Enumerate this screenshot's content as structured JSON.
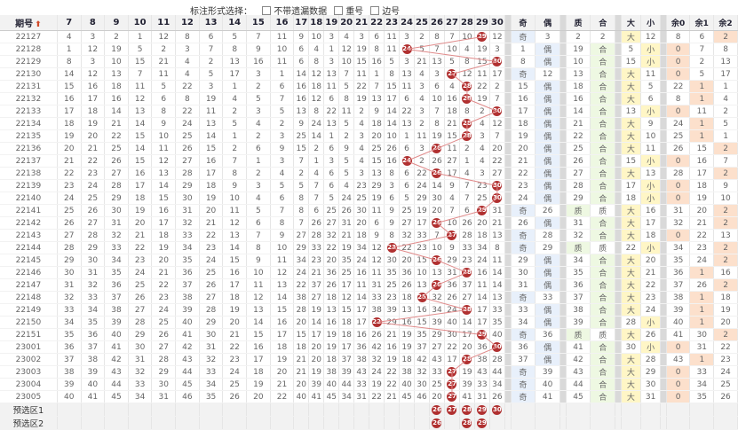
{
  "options": {
    "label": "标注形式选择：",
    "items": [
      {
        "label": "不带遗漏数据",
        "checked": false
      },
      {
        "label": "重号",
        "checked": false
      },
      {
        "label": "边号",
        "checked": false
      }
    ]
  },
  "headers": {
    "period": "期号",
    "sort_icon": "up-arrow-icon",
    "numbers": [
      "7",
      "8",
      "9",
      "10",
      "11",
      "12",
      "13",
      "14",
      "15",
      "16",
      "17",
      "18",
      "19",
      "20",
      "21",
      "22",
      "23",
      "24",
      "25",
      "26",
      "27",
      "28",
      "29",
      "30"
    ],
    "groups": [
      {
        "title": "奇偶",
        "cols": [
          "奇",
          "偶"
        ]
      },
      {
        "title": "质合",
        "cols": [
          "质",
          "合"
        ]
      },
      {
        "title": "尾大小",
        "cols": [
          "大",
          "小"
        ]
      },
      {
        "title": "除3余数",
        "cols": [
          "余0",
          "余1",
          "余2"
        ]
      }
    ]
  },
  "rows": [
    {
      "period": "22127",
      "ball": 29,
      "oe": "奇",
      "pc": "2",
      "bs": "大",
      "r": "r2",
      "miss": [
        "4",
        "3",
        "2",
        "1",
        "12",
        "8",
        "6",
        "5",
        "7",
        "11",
        "9",
        "10",
        "3"
      ]
    },
    {
      "period": "22128",
      "ball": 24,
      "oe": "偶",
      "pc": "合",
      "bs": "小",
      "r": "r0",
      "miss": [
        "1",
        "12",
        "19",
        "5",
        "2",
        "3",
        "7",
        "8",
        "9",
        "10",
        "11",
        "6",
        "4"
      ]
    },
    {
      "period": "22129",
      "ball": 30,
      "oe": "偶",
      "pc": "合",
      "bs": "小",
      "r": "r0",
      "miss": [
        "8",
        "3",
        "10",
        "15",
        "21",
        "4",
        "2",
        "13",
        "16",
        "11",
        "5",
        "5",
        "6"
      ]
    },
    {
      "period": "22130",
      "ball": 27,
      "oe": "奇",
      "pc": "合",
      "bs": "大",
      "r": "r0",
      "miss": [
        "14",
        "12",
        "13",
        "7",
        "11",
        "4",
        "5",
        "17",
        "3",
        "1",
        "6",
        "6",
        "8"
      ]
    },
    {
      "period": "22131",
      "ball": 28,
      "oe": "偶",
      "pc": "合",
      "bs": "大",
      "r": "r1",
      "miss": [
        "15",
        "16",
        "18",
        "11",
        "5",
        "22",
        "3",
        "1",
        "2",
        "6",
        "7",
        "8",
        "4"
      ]
    },
    {
      "period": "22132",
      "ball": 28,
      "oe": "偶",
      "pc": "合",
      "bs": "大",
      "r": "r1",
      "miss": [
        "16",
        "17",
        "16",
        "12",
        "6",
        "8",
        "19",
        "4",
        "5",
        "7",
        "10",
        "13",
        "3"
      ]
    },
    {
      "period": "22133",
      "ball": 30,
      "oe": "偶",
      "pc": "合",
      "bs": "小",
      "r": "r0",
      "miss": [
        "17",
        "18",
        "14",
        "13",
        "8",
        "22",
        "11",
        "2",
        "3",
        "5",
        "6",
        "7",
        "9"
      ]
    },
    {
      "period": "22134",
      "ball": 28,
      "oe": "偶",
      "pc": "合",
      "bs": "大",
      "r": "r1",
      "miss": [
        "18",
        "19",
        "21",
        "14",
        "9",
        "24",
        "13",
        "5",
        "4",
        "2",
        "3",
        "12",
        "8"
      ]
    },
    {
      "period": "22135",
      "ball": 28,
      "oe": "偶",
      "pc": "合",
      "bs": "大",
      "r": "r1",
      "miss": [
        "19",
        "20",
        "22",
        "15",
        "10",
        "25",
        "14",
        "1",
        "2",
        "3",
        "11",
        "8",
        "7"
      ]
    },
    {
      "period": "22136",
      "ball": 26,
      "oe": "偶",
      "pc": "合",
      "bs": "大",
      "r": "r2",
      "miss": [
        "20",
        "21",
        "25",
        "14",
        "11",
        "26",
        "15",
        "2",
        "6",
        "9",
        "4",
        "3",
        "1"
      ]
    },
    {
      "period": "22137",
      "ball": 24,
      "oe": "偶",
      "pc": "合",
      "bs": "小",
      "r": "r0",
      "miss": [
        "21",
        "22",
        "26",
        "15",
        "12",
        "27",
        "16",
        "7",
        "1",
        "3",
        "5",
        "4",
        "2"
      ]
    },
    {
      "period": "22138",
      "ball": 26,
      "oe": "偶",
      "pc": "合",
      "bs": "大",
      "r": "r2",
      "miss": [
        "22",
        "23",
        "27",
        "16",
        "13",
        "28",
        "17",
        "8",
        "2",
        "4",
        "6",
        "5",
        "3"
      ]
    },
    {
      "period": "22139",
      "ball": 30,
      "oe": "偶",
      "pc": "合",
      "bs": "小",
      "r": "r0",
      "miss": [
        "23",
        "24",
        "28",
        "17",
        "14",
        "29",
        "18",
        "9",
        "3",
        "5",
        "7",
        "6",
        "4"
      ]
    },
    {
      "period": "22140",
      "ball": 30,
      "oe": "偶",
      "pc": "合",
      "bs": "小",
      "r": "r0",
      "miss": [
        "24",
        "25",
        "29",
        "18",
        "15",
        "30",
        "19",
        "10",
        "4",
        "6",
        "8",
        "7",
        "5"
      ]
    },
    {
      "period": "22141",
      "ball": 29,
      "oe": "奇",
      "pc": "质",
      "bs": "大",
      "r": "r2",
      "miss": [
        "25",
        "26",
        "30",
        "19",
        "16",
        "31",
        "20",
        "11",
        "5",
        "7",
        "9",
        "8",
        "6"
      ]
    },
    {
      "period": "22142",
      "ball": 26,
      "oe": "偶",
      "pc": "合",
      "bs": "大",
      "r": "r2",
      "miss": [
        "26",
        "27",
        "31",
        "20",
        "17",
        "32",
        "21",
        "12",
        "6",
        "8",
        "10",
        "9",
        "7"
      ]
    },
    {
      "period": "22143",
      "ball": 27,
      "oe": "奇",
      "pc": "合",
      "bs": "大",
      "r": "r0",
      "miss": [
        "27",
        "28",
        "32",
        "21",
        "18",
        "33",
        "22",
        "13",
        "7",
        "9",
        "11",
        "10",
        "8"
      ]
    },
    {
      "period": "22144",
      "ball": 23,
      "oe": "奇",
      "pc": "质",
      "bs": "小",
      "r": "r2",
      "miss": [
        "28",
        "29",
        "33",
        "22",
        "19",
        "34",
        "23",
        "14",
        "8",
        "10",
        "12",
        "11",
        "9"
      ]
    },
    {
      "period": "22145",
      "ball": 26,
      "oe": "偶",
      "pc": "合",
      "bs": "大",
      "r": "r2",
      "miss": [
        "29",
        "30",
        "34",
        "23",
        "20",
        "35",
        "24",
        "15",
        "9",
        "11",
        "13",
        "12",
        "10"
      ]
    },
    {
      "period": "22146",
      "ball": 28,
      "oe": "偶",
      "pc": "合",
      "bs": "大",
      "r": "r1",
      "miss": [
        "30",
        "31",
        "35",
        "24",
        "21",
        "36",
        "25",
        "16",
        "10",
        "12",
        "14",
        "13",
        "11"
      ]
    },
    {
      "period": "22147",
      "ball": 26,
      "oe": "偶",
      "pc": "合",
      "bs": "大",
      "r": "r2",
      "miss": [
        "31",
        "32",
        "36",
        "25",
        "22",
        "37",
        "26",
        "17",
        "11",
        "13",
        "15",
        "14",
        "12"
      ]
    },
    {
      "period": "22148",
      "ball": 25,
      "oe": "奇",
      "pc": "合",
      "bs": "大",
      "r": "r1",
      "miss": [
        "32",
        "33",
        "37",
        "26",
        "23",
        "38",
        "27",
        "18",
        "12",
        "14",
        "16",
        "15",
        "13"
      ]
    },
    {
      "period": "22149",
      "ball": 28,
      "oe": "偶",
      "pc": "合",
      "bs": "大",
      "r": "r1",
      "miss": [
        "33",
        "34",
        "38",
        "27",
        "24",
        "39",
        "28",
        "19",
        "13",
        "15",
        "17",
        "16",
        "14"
      ]
    },
    {
      "period": "22150",
      "ball": 22,
      "oe": "偶",
      "pc": "合",
      "bs": "小",
      "r": "r1",
      "miss": [
        "34",
        "35",
        "39",
        "28",
        "25",
        "40",
        "29",
        "20",
        "14",
        "16",
        "18",
        "17",
        "15"
      ]
    },
    {
      "period": "22151",
      "ball": 29,
      "oe": "奇",
      "pc": "质",
      "bs": "大",
      "r": "r2",
      "miss": [
        "35",
        "36",
        "40",
        "29",
        "26",
        "41",
        "30",
        "21",
        "15",
        "17",
        "19",
        "18",
        "16"
      ]
    },
    {
      "period": "23001",
      "ball": 30,
      "oe": "偶",
      "pc": "合",
      "bs": "小",
      "r": "r0",
      "miss": [
        "36",
        "37",
        "41",
        "30",
        "27",
        "42",
        "31",
        "22",
        "16",
        "18",
        "20",
        "19",
        "17"
      ]
    },
    {
      "period": "23002",
      "ball": 28,
      "oe": "偶",
      "pc": "合",
      "bs": "大",
      "r": "r1",
      "miss": [
        "37",
        "38",
        "42",
        "31",
        "28",
        "43",
        "32",
        "23",
        "17",
        "19",
        "21",
        "20",
        "18"
      ]
    },
    {
      "period": "23003",
      "ball": 27,
      "oe": "奇",
      "pc": "合",
      "bs": "大",
      "r": "r0",
      "miss": [
        "38",
        "39",
        "43",
        "32",
        "29",
        "44",
        "33",
        "24",
        "18",
        "20",
        "22",
        "21",
        "19"
      ]
    },
    {
      "period": "23004",
      "ball": 27,
      "oe": "奇",
      "pc": "合",
      "bs": "大",
      "r": "r0",
      "miss": [
        "39",
        "40",
        "44",
        "33",
        "30",
        "45",
        "34",
        "25",
        "19",
        "21",
        "23",
        "22",
        "20"
      ]
    },
    {
      "period": "23005",
      "ball": 27,
      "oe": "奇",
      "pc": "合",
      "bs": "大",
      "r": "r0",
      "miss": [
        "40",
        "41",
        "45",
        "34",
        "31",
        "46",
        "35",
        "26",
        "20",
        "22",
        "24",
        "23",
        "21"
      ]
    }
  ],
  "footer": [
    {
      "label": "预选区1",
      "balls": [
        "26",
        "27",
        "28",
        "29",
        "30"
      ]
    },
    {
      "label": "预选区2",
      "balls": [
        "26",
        "28",
        "29"
      ]
    }
  ]
}
